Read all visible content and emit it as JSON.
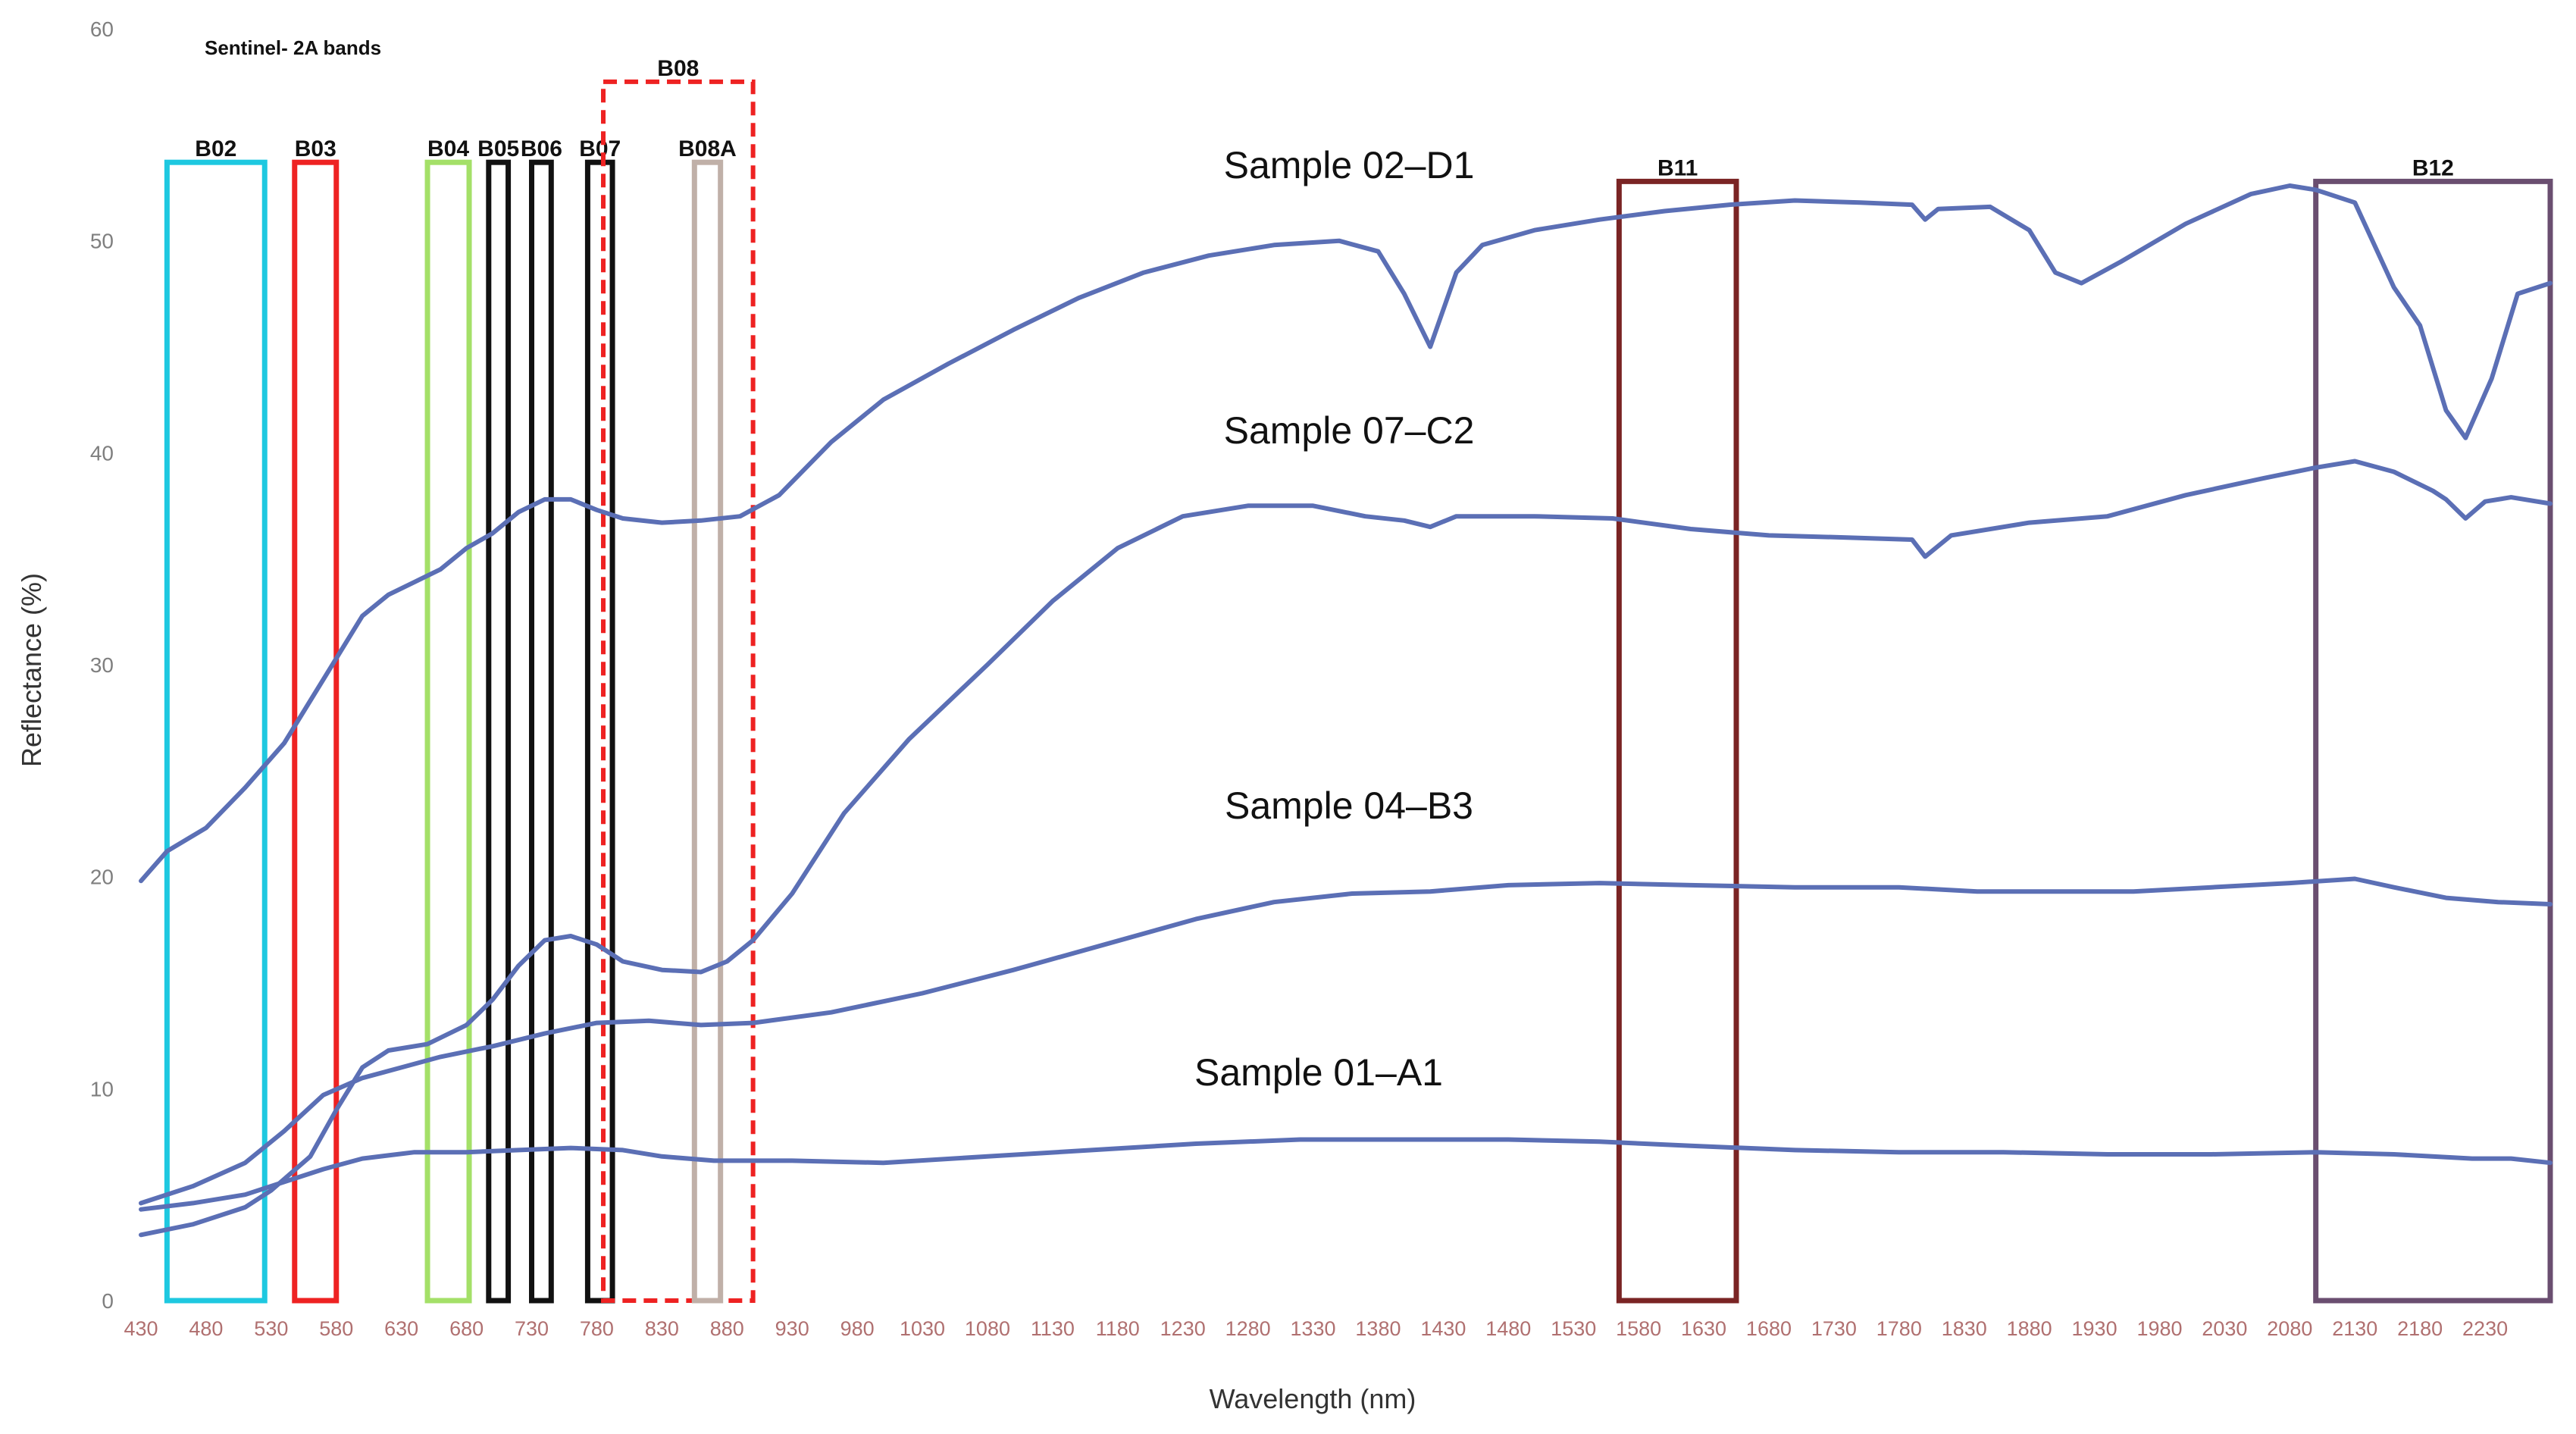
{
  "chart_data": {
    "type": "line",
    "title": "",
    "annotation": "Sentinel- 2A bands",
    "xlabel": "Wavelength (nm)",
    "ylabel": "Reflectance (%)",
    "xlim": [
      430,
      2280
    ],
    "ylim": [
      0,
      60
    ],
    "x_ticks": [
      "430",
      "480",
      "530",
      "580",
      "630",
      "680",
      "730",
      "780",
      "830",
      "880",
      "930",
      "980",
      "1030",
      "1080",
      "1130",
      "1180",
      "1230",
      "1280",
      "1330",
      "1380",
      "1430",
      "1480",
      "1530",
      "1580",
      "1630",
      "1680",
      "1730",
      "1780",
      "1830",
      "1880",
      "1930",
      "1980",
      "2030",
      "2080",
      "2130",
      "2180",
      "2230"
    ],
    "y_ticks": [
      "0",
      "10",
      "20",
      "30",
      "40",
      "50",
      "60"
    ],
    "grid": false,
    "legend": "none",
    "line_color": "#5b6fb5",
    "series": [
      {
        "name": "Sample 02–D1",
        "points": [
          [
            430,
            19.8
          ],
          [
            450,
            21.2
          ],
          [
            480,
            22.3
          ],
          [
            510,
            24.2
          ],
          [
            540,
            26.3
          ],
          [
            560,
            28.3
          ],
          [
            580,
            30.3
          ],
          [
            600,
            32.3
          ],
          [
            620,
            33.3
          ],
          [
            640,
            33.9
          ],
          [
            660,
            34.5
          ],
          [
            680,
            35.5
          ],
          [
            700,
            36.2
          ],
          [
            720,
            37.2
          ],
          [
            740,
            37.8
          ],
          [
            760,
            37.8
          ],
          [
            780,
            37.3
          ],
          [
            800,
            36.9
          ],
          [
            830,
            36.7
          ],
          [
            860,
            36.8
          ],
          [
            890,
            37.0
          ],
          [
            920,
            38.0
          ],
          [
            960,
            40.5
          ],
          [
            1000,
            42.5
          ],
          [
            1050,
            44.2
          ],
          [
            1100,
            45.8
          ],
          [
            1150,
            47.3
          ],
          [
            1200,
            48.5
          ],
          [
            1250,
            49.3
          ],
          [
            1300,
            49.8
          ],
          [
            1350,
            50.0
          ],
          [
            1380,
            49.5
          ],
          [
            1400,
            47.5
          ],
          [
            1420,
            45.0
          ],
          [
            1440,
            48.5
          ],
          [
            1460,
            49.8
          ],
          [
            1500,
            50.5
          ],
          [
            1550,
            51.0
          ],
          [
            1600,
            51.4
          ],
          [
            1650,
            51.7
          ],
          [
            1700,
            51.9
          ],
          [
            1750,
            51.8
          ],
          [
            1790,
            51.7
          ],
          [
            1800,
            51.0
          ],
          [
            1810,
            51.5
          ],
          [
            1850,
            51.6
          ],
          [
            1880,
            50.5
          ],
          [
            1900,
            48.5
          ],
          [
            1920,
            48.0
          ],
          [
            1950,
            49.0
          ],
          [
            2000,
            50.8
          ],
          [
            2050,
            52.2
          ],
          [
            2080,
            52.6
          ],
          [
            2100,
            52.4
          ],
          [
            2130,
            51.8
          ],
          [
            2160,
            47.8
          ],
          [
            2180,
            46.0
          ],
          [
            2200,
            42.0
          ],
          [
            2215,
            40.7
          ],
          [
            2235,
            43.5
          ],
          [
            2255,
            47.5
          ],
          [
            2280,
            48.0
          ]
        ]
      },
      {
        "name": "Sample 07–C2",
        "points": [
          [
            430,
            3.1
          ],
          [
            470,
            3.6
          ],
          [
            510,
            4.4
          ],
          [
            530,
            5.2
          ],
          [
            560,
            6.8
          ],
          [
            580,
            9.0
          ],
          [
            600,
            11.0
          ],
          [
            620,
            11.8
          ],
          [
            650,
            12.1
          ],
          [
            680,
            13.0
          ],
          [
            700,
            14.2
          ],
          [
            720,
            15.8
          ],
          [
            740,
            17.0
          ],
          [
            760,
            17.2
          ],
          [
            780,
            16.8
          ],
          [
            800,
            16.0
          ],
          [
            830,
            15.6
          ],
          [
            860,
            15.5
          ],
          [
            880,
            16.0
          ],
          [
            900,
            17.0
          ],
          [
            930,
            19.2
          ],
          [
            970,
            23.0
          ],
          [
            1020,
            26.5
          ],
          [
            1080,
            30.0
          ],
          [
            1130,
            33.0
          ],
          [
            1180,
            35.5
          ],
          [
            1230,
            37.0
          ],
          [
            1280,
            37.5
          ],
          [
            1330,
            37.5
          ],
          [
            1370,
            37.0
          ],
          [
            1400,
            36.8
          ],
          [
            1420,
            36.5
          ],
          [
            1440,
            37.0
          ],
          [
            1500,
            37.0
          ],
          [
            1560,
            36.9
          ],
          [
            1620,
            36.4
          ],
          [
            1680,
            36.1
          ],
          [
            1740,
            36.0
          ],
          [
            1790,
            35.9
          ],
          [
            1800,
            35.1
          ],
          [
            1820,
            36.1
          ],
          [
            1880,
            36.7
          ],
          [
            1940,
            37.0
          ],
          [
            2000,
            38.0
          ],
          [
            2060,
            38.8
          ],
          [
            2100,
            39.3
          ],
          [
            2130,
            39.6
          ],
          [
            2160,
            39.1
          ],
          [
            2190,
            38.2
          ],
          [
            2200,
            37.8
          ],
          [
            2215,
            36.9
          ],
          [
            2230,
            37.7
          ],
          [
            2250,
            37.9
          ],
          [
            2280,
            37.6
          ]
        ]
      },
      {
        "name": "Sample 04–B3",
        "points": [
          [
            430,
            4.6
          ],
          [
            470,
            5.4
          ],
          [
            510,
            6.5
          ],
          [
            540,
            8.0
          ],
          [
            570,
            9.7
          ],
          [
            600,
            10.5
          ],
          [
            630,
            11.0
          ],
          [
            660,
            11.5
          ],
          [
            700,
            12.0
          ],
          [
            740,
            12.6
          ],
          [
            780,
            13.1
          ],
          [
            820,
            13.2
          ],
          [
            860,
            13.0
          ],
          [
            900,
            13.1
          ],
          [
            960,
            13.6
          ],
          [
            1030,
            14.5
          ],
          [
            1100,
            15.6
          ],
          [
            1170,
            16.8
          ],
          [
            1240,
            18.0
          ],
          [
            1300,
            18.8
          ],
          [
            1360,
            19.2
          ],
          [
            1420,
            19.3
          ],
          [
            1480,
            19.6
          ],
          [
            1550,
            19.7
          ],
          [
            1620,
            19.6
          ],
          [
            1700,
            19.5
          ],
          [
            1780,
            19.5
          ],
          [
            1840,
            19.3
          ],
          [
            1900,
            19.3
          ],
          [
            1960,
            19.3
          ],
          [
            2020,
            19.5
          ],
          [
            2080,
            19.7
          ],
          [
            2130,
            19.9
          ],
          [
            2160,
            19.5
          ],
          [
            2200,
            19.0
          ],
          [
            2240,
            18.8
          ],
          [
            2280,
            18.7
          ]
        ]
      },
      {
        "name": "Sample 01–A1",
        "points": [
          [
            430,
            4.3
          ],
          [
            470,
            4.6
          ],
          [
            510,
            5.0
          ],
          [
            540,
            5.6
          ],
          [
            570,
            6.2
          ],
          [
            600,
            6.7
          ],
          [
            640,
            7.0
          ],
          [
            680,
            7.0
          ],
          [
            720,
            7.1
          ],
          [
            760,
            7.2
          ],
          [
            800,
            7.1
          ],
          [
            830,
            6.8
          ],
          [
            870,
            6.6
          ],
          [
            930,
            6.6
          ],
          [
            1000,
            6.5
          ],
          [
            1080,
            6.8
          ],
          [
            1160,
            7.1
          ],
          [
            1240,
            7.4
          ],
          [
            1320,
            7.6
          ],
          [
            1400,
            7.6
          ],
          [
            1480,
            7.6
          ],
          [
            1550,
            7.5
          ],
          [
            1620,
            7.3
          ],
          [
            1700,
            7.1
          ],
          [
            1780,
            7.0
          ],
          [
            1860,
            7.0
          ],
          [
            1940,
            6.9
          ],
          [
            2020,
            6.9
          ],
          [
            2100,
            7.0
          ],
          [
            2160,
            6.9
          ],
          [
            2220,
            6.7
          ],
          [
            2250,
            6.7
          ],
          [
            2280,
            6.5
          ]
        ]
      }
    ],
    "bands": [
      {
        "name": "B02",
        "x_start": 450,
        "x_end": 525,
        "y_top": 53.7,
        "color": "#1ec8e0",
        "style": "solid"
      },
      {
        "name": "B03",
        "x_start": 548,
        "x_end": 580,
        "y_top": 53.7,
        "color": "#ee2222",
        "style": "solid"
      },
      {
        "name": "B04",
        "x_start": 650,
        "x_end": 682,
        "y_top": 53.7,
        "color": "#a4e068",
        "style": "solid"
      },
      {
        "name": "B05",
        "x_start": 697,
        "x_end": 712,
        "y_top": 53.7,
        "color": "#111111",
        "style": "solid"
      },
      {
        "name": "B06",
        "x_start": 730,
        "x_end": 745,
        "y_top": 53.7,
        "color": "#111111",
        "style": "solid"
      },
      {
        "name": "B07",
        "x_start": 773,
        "x_end": 792,
        "y_top": 53.7,
        "color": "#111111",
        "style": "solid"
      },
      {
        "name": "B08",
        "x_start": 785,
        "x_end": 900,
        "y_top": 57.5,
        "color": "#ee2222",
        "style": "dashed"
      },
      {
        "name": "B08A",
        "x_start": 855,
        "x_end": 875,
        "y_top": 53.7,
        "color": "#c0b0a8",
        "style": "solid"
      },
      {
        "name": "B11",
        "x_start": 1565,
        "x_end": 1655,
        "y_top": 52.8,
        "color": "#7a2424",
        "style": "solid"
      },
      {
        "name": "B12",
        "x_start": 2100,
        "x_end": 2280,
        "y_top": 52.8,
        "color": "#6a4e70",
        "style": "solid"
      }
    ]
  }
}
